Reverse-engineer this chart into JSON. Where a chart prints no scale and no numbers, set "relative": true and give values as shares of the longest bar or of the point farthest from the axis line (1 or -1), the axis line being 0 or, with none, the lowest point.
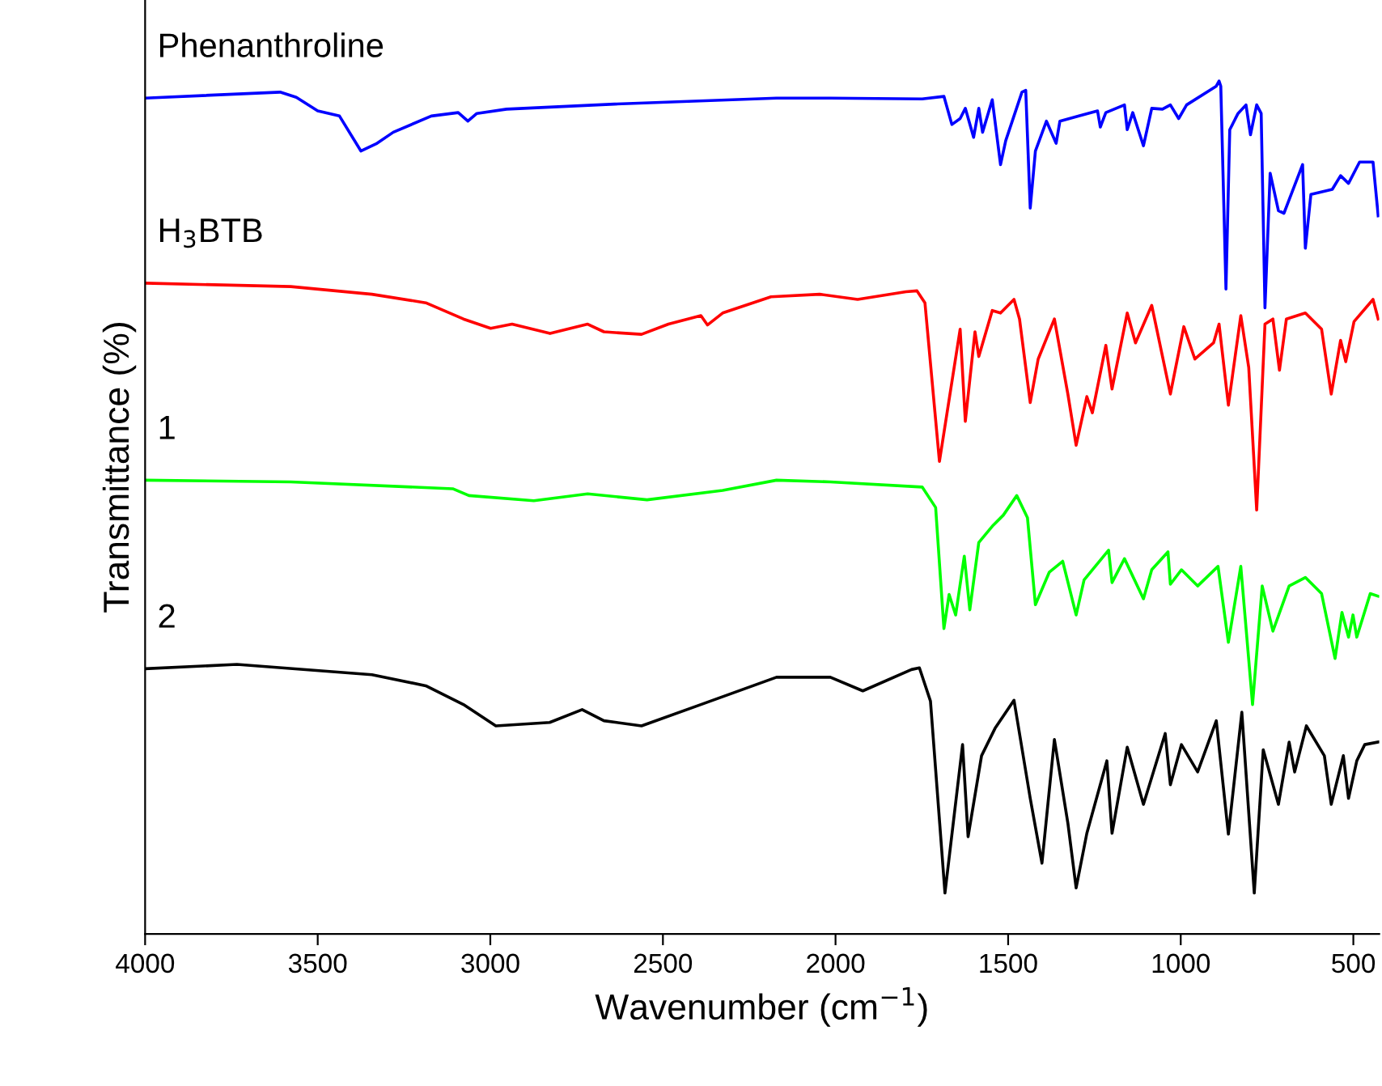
{
  "chart_data": {
    "type": "line",
    "xlabel": "Wavenumber (cm$^{−1}$)",
    "ylabel": "Transmittance (%)",
    "relative": true,
    "xlim": [
      4000,
      425
    ],
    "xticks": [
      4000,
      3500,
      3000,
      2500,
      2000,
      1500,
      1000,
      500
    ],
    "grid": false,
    "legend": false,
    "marker": "none",
    "line_style": "solid",
    "tick_labels": "x",
    "series": [
      {
        "name": "Phenanthroline",
        "color": "#0000ff",
        "x": [
          4000,
          3609,
          3562,
          3500,
          3437,
          3375,
          3328,
          3281,
          3171,
          3093,
          3065,
          3039,
          2953,
          2640,
          2171,
          2015,
          1749,
          1686,
          1663,
          1639,
          1624,
          1600,
          1585,
          1574,
          1546,
          1522,
          1507,
          1460,
          1449,
          1436,
          1421,
          1389,
          1361,
          1350,
          1295,
          1241,
          1233,
          1217,
          1163,
          1155,
          1139,
          1108,
          1084,
          1053,
          1030,
          1006,
          983,
          897,
          889,
          884,
          869,
          858,
          834,
          811,
          798,
          780,
          767,
          756,
          741,
          717,
          701,
          647,
          639,
          623,
          561,
          537,
          514,
          482,
          443,
          428
        ],
        "values": [
          0.98,
          0.987,
          0.981,
          0.965,
          0.959,
          0.918,
          0.927,
          0.94,
          0.959,
          0.963,
          0.953,
          0.962,
          0.967,
          0.973,
          0.98,
          0.98,
          0.979,
          0.982,
          0.949,
          0.956,
          0.968,
          0.934,
          0.968,
          0.94,
          0.978,
          0.902,
          0.93,
          0.987,
          0.989,
          0.851,
          0.918,
          0.953,
          0.927,
          0.953,
          0.959,
          0.965,
          0.946,
          0.963,
          0.972,
          0.943,
          0.963,
          0.924,
          0.968,
          0.967,
          0.972,
          0.956,
          0.972,
          0.994,
          1.0,
          0.994,
          0.756,
          0.943,
          0.962,
          0.972,
          0.937,
          0.972,
          0.962,
          0.734,
          0.892,
          0.848,
          0.845,
          0.902,
          0.804,
          0.867,
          0.873,
          0.889,
          0.88,
          0.905,
          0.905,
          0.842
        ]
      },
      {
        "name": "H$_{3}$BTB",
        "color": "#ff0000",
        "x": [
          4000,
          3578,
          3343,
          3187,
          3078,
          2999,
          2937,
          2827,
          2718,
          2671,
          2562,
          2484,
          2390,
          2371,
          2327,
          2187,
          2046,
          1936,
          1796,
          1764,
          1741,
          1699,
          1639,
          1624,
          1596,
          1585,
          1546,
          1522,
          1483,
          1467,
          1436,
          1413,
          1366,
          1327,
          1303,
          1272,
          1256,
          1217,
          1199,
          1155,
          1131,
          1084,
          1030,
          991,
          959,
          905,
          889,
          862,
          826,
          803,
          780,
          756,
          733,
          714,
          694,
          639,
          592,
          564,
          537,
          522,
          498,
          443,
          428
        ],
        "values": [
          0.763,
          0.759,
          0.75,
          0.74,
          0.721,
          0.71,
          0.715,
          0.704,
          0.715,
          0.706,
          0.703,
          0.715,
          0.725,
          0.714,
          0.728,
          0.747,
          0.75,
          0.744,
          0.753,
          0.754,
          0.74,
          0.554,
          0.709,
          0.601,
          0.706,
          0.677,
          0.731,
          0.728,
          0.744,
          0.721,
          0.623,
          0.674,
          0.721,
          0.633,
          0.573,
          0.63,
          0.611,
          0.69,
          0.639,
          0.728,
          0.693,
          0.737,
          0.633,
          0.712,
          0.674,
          0.693,
          0.715,
          0.62,
          0.725,
          0.664,
          0.497,
          0.715,
          0.721,
          0.661,
          0.721,
          0.728,
          0.709,
          0.633,
          0.696,
          0.671,
          0.718,
          0.744,
          0.721
        ]
      },
      {
        "name": "1",
        "color": "#00ff00",
        "x": [
          4000,
          3578,
          3109,
          3062,
          2874,
          2718,
          2546,
          2327,
          2171,
          2015,
          1749,
          1710,
          1686,
          1671,
          1652,
          1627,
          1611,
          1585,
          1546,
          1514,
          1475,
          1444,
          1421,
          1381,
          1342,
          1303,
          1280,
          1209,
          1199,
          1163,
          1108,
          1084,
          1037,
          1030,
          998,
          951,
          892,
          862,
          826,
          792,
          764,
          733,
          686,
          639,
          592,
          553,
          533,
          514,
          501,
          490,
          451,
          428
        ],
        "values": [
          0.532,
          0.53,
          0.522,
          0.514,
          0.508,
          0.516,
          0.509,
          0.52,
          0.532,
          0.53,
          0.524,
          0.5,
          0.358,
          0.398,
          0.374,
          0.443,
          0.38,
          0.459,
          0.478,
          0.491,
          0.514,
          0.488,
          0.386,
          0.424,
          0.437,
          0.374,
          0.415,
          0.45,
          0.412,
          0.44,
          0.393,
          0.427,
          0.448,
          0.41,
          0.427,
          0.408,
          0.431,
          0.342,
          0.431,
          0.269,
          0.408,
          0.355,
          0.408,
          0.418,
          0.399,
          0.323,
          0.377,
          0.348,
          0.374,
          0.348,
          0.399,
          0.396
        ]
      },
      {
        "name": "2",
        "color": "#000000",
        "x": [
          4000,
          3734,
          3343,
          3187,
          3078,
          2984,
          2828,
          2734,
          2671,
          2562,
          2390,
          2171,
          2015,
          1921,
          1780,
          1757,
          1725,
          1683,
          1632,
          1616,
          1577,
          1538,
          1483,
          1436,
          1402,
          1366,
          1327,
          1303,
          1272,
          1214,
          1199,
          1155,
          1108,
          1045,
          1030,
          998,
          951,
          897,
          862,
          823,
          787,
          761,
          717,
          686,
          670,
          636,
          584,
          564,
          529,
          514,
          490,
          467,
          428
        ],
        "values": [
          0.311,
          0.316,
          0.304,
          0.291,
          0.269,
          0.244,
          0.248,
          0.263,
          0.25,
          0.244,
          0.269,
          0.301,
          0.301,
          0.285,
          0.31,
          0.312,
          0.273,
          0.048,
          0.222,
          0.114,
          0.209,
          0.241,
          0.274,
          0.159,
          0.083,
          0.228,
          0.13,
          0.054,
          0.118,
          0.203,
          0.118,
          0.219,
          0.152,
          0.235,
          0.175,
          0.222,
          0.19,
          0.25,
          0.117,
          0.26,
          0.048,
          0.216,
          0.152,
          0.225,
          0.19,
          0.244,
          0.209,
          0.152,
          0.209,
          0.159,
          0.203,
          0.222,
          0.225
        ]
      }
    ]
  }
}
